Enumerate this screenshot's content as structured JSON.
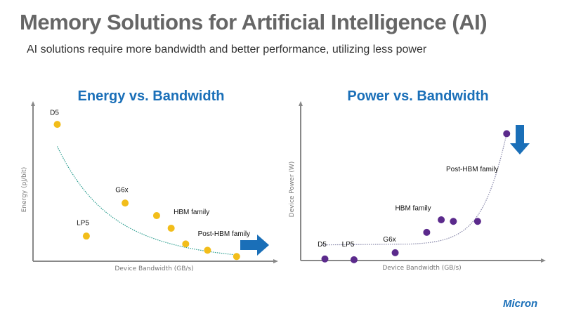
{
  "slide": {
    "title": "Memory Solutions for Artificial Intelligence (AI)",
    "subtitle": "AI solutions require more bandwidth and better performance, utilizing less power",
    "logo": "Micron"
  },
  "chart_data": [
    {
      "type": "scatter",
      "title": "Energy vs. Bandwidth",
      "xlabel": "Device Bandwidth (GB/s)",
      "ylabel": "Energy (pJ/bit)",
      "xlim": [
        0,
        10
      ],
      "ylim": [
        0,
        10
      ],
      "grid": false,
      "color": "#f2bd1a",
      "trend_color": "#2a9d8f",
      "points": [
        {
          "x": 1.0,
          "y": 8.7
        },
        {
          "x": 2.2,
          "y": 1.6
        },
        {
          "x": 3.8,
          "y": 3.7
        },
        {
          "x": 5.1,
          "y": 2.9
        },
        {
          "x": 5.7,
          "y": 2.1
        },
        {
          "x": 6.3,
          "y": 1.1
        },
        {
          "x": 7.2,
          "y": 0.7
        },
        {
          "x": 8.4,
          "y": 0.3
        }
      ],
      "annotations": [
        {
          "text": "D5",
          "x": 0.7,
          "y": 9.3
        },
        {
          "text": "LP5",
          "x": 1.8,
          "y": 2.3
        },
        {
          "text": "G6x",
          "x": 3.4,
          "y": 4.4
        },
        {
          "text": "HBM family",
          "x": 5.8,
          "y": 3.0
        },
        {
          "text": "Post-HBM family",
          "x": 6.8,
          "y": 1.6
        }
      ],
      "arrow": "right"
    },
    {
      "type": "scatter",
      "title": "Power vs. Bandwidth",
      "xlabel": "Device Bandwidth (GB/s)",
      "ylabel": "Device Power (W)",
      "xlim": [
        0,
        10
      ],
      "ylim": [
        0,
        10
      ],
      "grid": false,
      "color": "#5b2a8c",
      "trend_color": "#8888aa",
      "points": [
        {
          "x": 1.0,
          "y": 0.1
        },
        {
          "x": 2.2,
          "y": 0.05
        },
        {
          "x": 3.9,
          "y": 0.5
        },
        {
          "x": 5.2,
          "y": 1.8
        },
        {
          "x": 5.8,
          "y": 2.6
        },
        {
          "x": 6.3,
          "y": 2.5
        },
        {
          "x": 7.3,
          "y": 2.5
        },
        {
          "x": 8.5,
          "y": 8.1
        }
      ],
      "annotations": [
        {
          "text": "D5",
          "x": 0.7,
          "y": 0.9
        },
        {
          "text": "LP5",
          "x": 1.7,
          "y": 0.9
        },
        {
          "text": "G6x",
          "x": 3.4,
          "y": 1.2
        },
        {
          "text": "HBM family",
          "x": 3.9,
          "y": 3.2
        },
        {
          "text": "Post-HBM family",
          "x": 6.0,
          "y": 5.7
        }
      ],
      "arrow": "down"
    }
  ]
}
